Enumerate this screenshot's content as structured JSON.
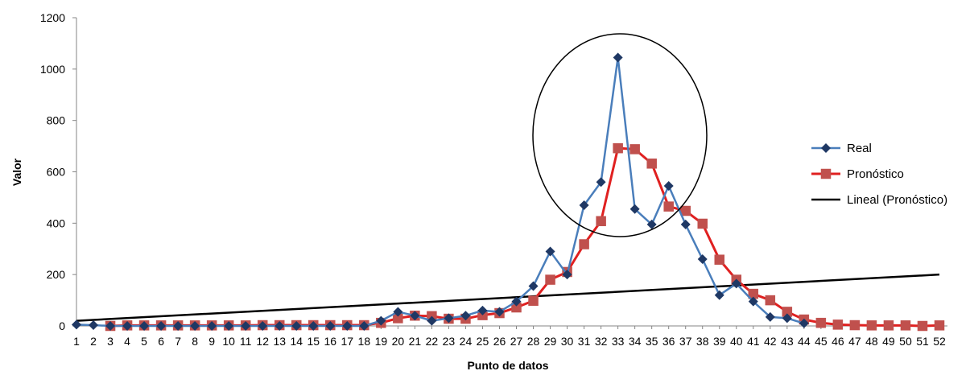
{
  "chart_data": {
    "type": "line",
    "xlabel": "Punto de datos",
    "ylabel": "Valor",
    "ylim": [
      0,
      1200
    ],
    "yticks": [
      "0",
      "200",
      "400",
      "600",
      "800",
      "1000",
      "1200"
    ],
    "x": [
      1,
      2,
      3,
      4,
      5,
      6,
      7,
      8,
      9,
      10,
      11,
      12,
      13,
      14,
      15,
      16,
      17,
      18,
      19,
      20,
      21,
      22,
      23,
      24,
      25,
      26,
      27,
      28,
      29,
      30,
      31,
      32,
      33,
      34,
      35,
      36,
      37,
      38,
      39,
      40,
      41,
      42,
      43,
      44,
      45,
      46,
      47,
      48,
      49,
      50,
      51,
      52
    ],
    "series": [
      {
        "name": "Real",
        "color": "#4a7ebb",
        "marker_color": "#1f3864",
        "marker": "diamond",
        "x": [
          1,
          2,
          3,
          4,
          5,
          6,
          7,
          8,
          9,
          10,
          11,
          12,
          13,
          14,
          15,
          16,
          17,
          18,
          19,
          20,
          21,
          22,
          23,
          24,
          25,
          26,
          27,
          28,
          29,
          30,
          31,
          32,
          33,
          34,
          35,
          36,
          37,
          38,
          39,
          40,
          41,
          42,
          43,
          44
        ],
        "values": [
          5,
          3,
          0,
          0,
          0,
          0,
          0,
          0,
          0,
          0,
          0,
          0,
          0,
          0,
          0,
          0,
          0,
          0,
          20,
          55,
          40,
          20,
          30,
          40,
          60,
          55,
          95,
          155,
          290,
          200,
          470,
          560,
          1045,
          455,
          395,
          545,
          395,
          260,
          120,
          165,
          95,
          35,
          30,
          10
        ]
      },
      {
        "name": "Pronóstico",
        "color": "#e02020",
        "marker_color": "#c0504d",
        "marker": "square",
        "x": [
          3,
          4,
          5,
          6,
          7,
          8,
          9,
          10,
          11,
          12,
          13,
          14,
          15,
          16,
          17,
          18,
          19,
          20,
          21,
          22,
          23,
          24,
          25,
          26,
          27,
          28,
          29,
          30,
          31,
          32,
          33,
          34,
          35,
          36,
          37,
          38,
          39,
          40,
          41,
          42,
          43,
          44,
          45,
          46,
          47,
          48,
          49,
          50,
          51,
          52
        ],
        "values": [
          0,
          2,
          2,
          2,
          2,
          2,
          2,
          2,
          2,
          3,
          3,
          3,
          3,
          3,
          3,
          3,
          12,
          30,
          40,
          38,
          28,
          28,
          42,
          50,
          72,
          98,
          180,
          210,
          318,
          408,
          692,
          688,
          632,
          465,
          448,
          398,
          258,
          180,
          125,
          100,
          55,
          25,
          12,
          5,
          3,
          2,
          2,
          2,
          0,
          2
        ]
      }
    ],
    "trendline": {
      "name": "Lineal (Pronóstico)",
      "color": "#000000",
      "start": [
        1,
        20
      ],
      "end": [
        52,
        200
      ]
    },
    "annotation": "ellipse",
    "legend_position": "right",
    "grid": false
  }
}
